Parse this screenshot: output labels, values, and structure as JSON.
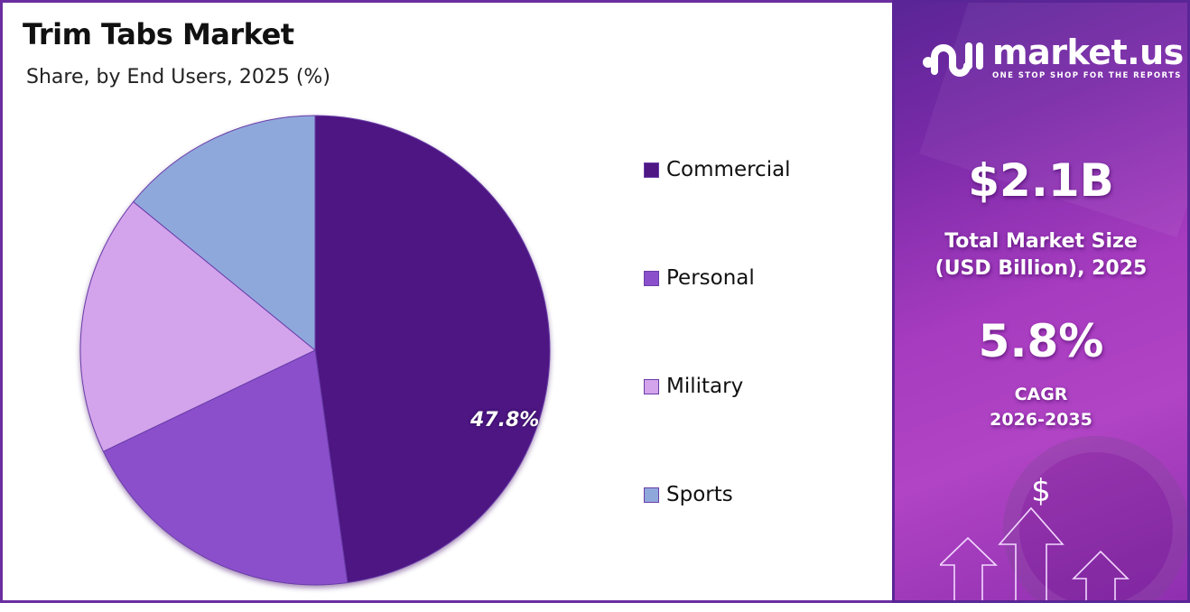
{
  "header": {
    "title": "Trim Tabs Market",
    "subtitle": "Share, by End Users, 2025 (%)"
  },
  "chart_data": {
    "type": "pie",
    "title": "Trim Tabs Market",
    "subtitle": "Share, by End Users, 2025 (%)",
    "categories": [
      "Commercial",
      "Personal",
      "Military",
      "Sports"
    ],
    "values": [
      47.8,
      20.1,
      18.0,
      14.1
    ],
    "labeled_values": {
      "Commercial": "47.8%"
    },
    "colors": [
      "#4e1783",
      "#8b4fcc",
      "#d3a3ec",
      "#8fa8dc"
    ],
    "start_angle": "12 o'clock, clockwise",
    "legend_position": "right"
  },
  "pie": {
    "label": "47.8%"
  },
  "legend": {
    "items": [
      {
        "label": "Commercial",
        "color": "#4e1783"
      },
      {
        "label": "Personal",
        "color": "#8b4fcc"
      },
      {
        "label": "Military",
        "color": "#d3a3ec"
      },
      {
        "label": "Sports",
        "color": "#8fa8dc"
      }
    ]
  },
  "brand": {
    "name": "market.us",
    "tagline": "ONE STOP SHOP FOR THE REPORTS"
  },
  "stats": {
    "market_size_value": "$2.1B",
    "market_size_label_line1": "Total Market Size",
    "market_size_label_line2": "(USD Billion), 2025",
    "cagr_value": "5.8%",
    "cagr_label": "CAGR",
    "cagr_period": "2026-2035"
  },
  "icons": {
    "growth": "dollar-growth-arrows-icon",
    "logo": "market-us-logo-icon"
  }
}
